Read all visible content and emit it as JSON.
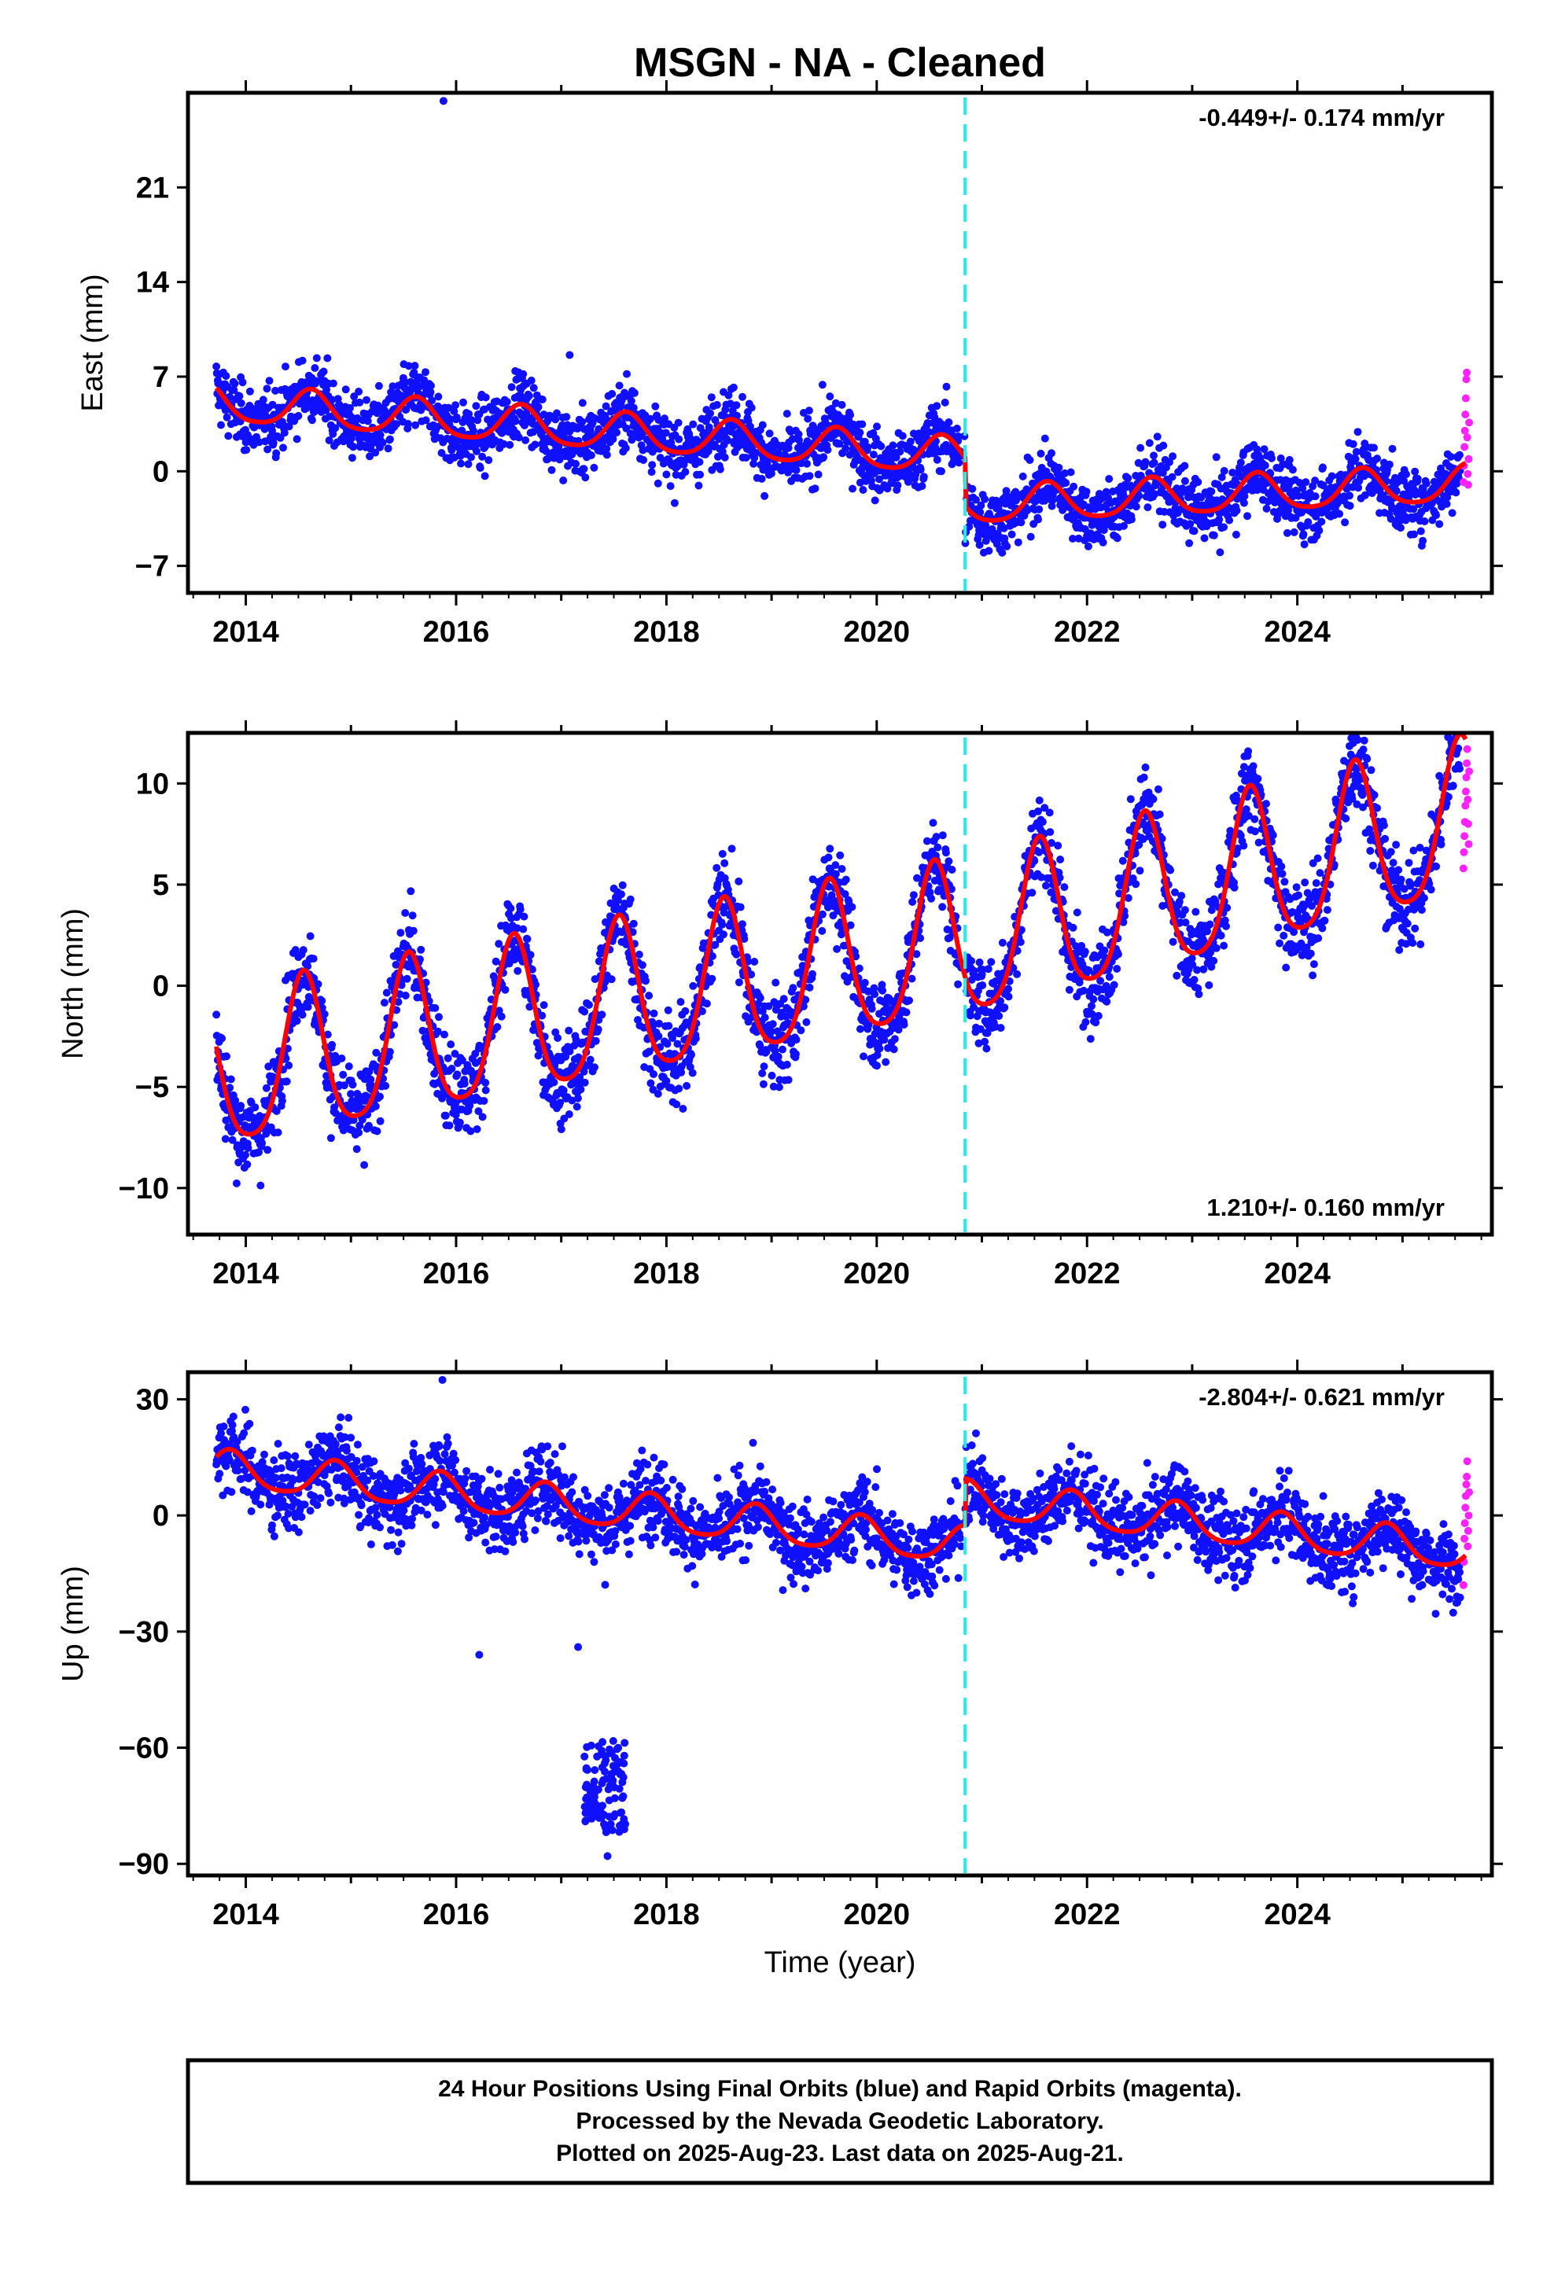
{
  "title": "MSGN  - NA - Cleaned",
  "xlabel": "Time (year)",
  "caption": [
    "24 Hour Positions Using Final Orbits (blue) and Rapid Orbits (magenta).",
    "Processed by the Nevada Geodetic Laboratory.",
    "Plotted on 2025-Aug-23. Last data on 2025-Aug-21."
  ],
  "colors": {
    "final": "#1010ff",
    "rapid": "#ff22ff",
    "model": "#ff0000",
    "event": "#22eeee"
  },
  "event_line_year": 2020.84,
  "chart_data": [
    {
      "type": "scatter",
      "component": "east",
      "ylabel": "East (mm)",
      "xlim": [
        2013.45,
        2025.85
      ],
      "ylim": [
        -9,
        28
      ],
      "yticks": [
        -7,
        0,
        7,
        14,
        21
      ],
      "xticks": [
        2014,
        2016,
        2018,
        2020,
        2022,
        2024
      ],
      "rate_label": "-0.449+/- 0.174 mm/yr",
      "rate_position": "top-right",
      "trend_knots": [
        [
          2013.7,
          5.0
        ],
        [
          2020.84,
          1.0
        ],
        [
          2020.84,
          -2.6
        ],
        [
          2025.6,
          -1.0
        ]
      ],
      "seasonal_amplitude": 1.6,
      "seasonal_peak": 0.62,
      "noise_sd": 1.2,
      "rapid_values": [
        -0.8,
        0.4,
        1.8,
        3.0,
        4.2,
        5.4,
        6.8,
        7.3,
        2.5,
        -0.2,
        -1.0,
        0.9,
        3.6
      ]
    },
    {
      "type": "scatter",
      "component": "north",
      "ylabel": "North (mm)",
      "xlim": [
        2013.45,
        2025.85
      ],
      "ylim": [
        -12.3,
        12.5
      ],
      "yticks": [
        -10,
        -5,
        0,
        5,
        10
      ],
      "xticks": [
        2014,
        2016,
        2018,
        2020,
        2022,
        2024
      ],
      "rate_label": "1.210+/- 0.160 mm/yr",
      "rate_position": "bottom-right",
      "trend_knots": [
        [
          2013.7,
          -4.5
        ],
        [
          2020.84,
          2.0
        ],
        [
          2020.84,
          2.0
        ],
        [
          2025.6,
          8.0
        ]
      ],
      "seasonal_amplitude": 4.5,
      "seasonal_peak": 0.55,
      "noise_sd": 1.1,
      "rapid_values": [
        5.8,
        6.6,
        7.4,
        8.1,
        8.9,
        9.6,
        10.3,
        11.0,
        11.7,
        9.2,
        8.0,
        7.0,
        10.6
      ]
    },
    {
      "type": "scatter",
      "component": "up",
      "ylabel": "Up (mm)",
      "xlim": [
        2013.45,
        2025.85
      ],
      "ylim": [
        -93,
        37
      ],
      "yticks": [
        -90,
        -60,
        -30,
        0,
        30
      ],
      "xticks": [
        2014,
        2016,
        2018,
        2020,
        2022,
        2024
      ],
      "rate_label": "-2.804+/- 0.621 mm/yr",
      "rate_position": "top-right",
      "trend_knots": [
        [
          2013.7,
          12.0
        ],
        [
          2020.84,
          -8.0
        ],
        [
          2020.84,
          4.0
        ],
        [
          2025.6,
          -9.5
        ]
      ],
      "seasonal_amplitude": 5.5,
      "seasonal_peak": 0.85,
      "noise_sd": 5.0,
      "rapid_values": [
        -18,
        -12,
        -6,
        -2,
        2,
        5,
        8,
        10,
        14,
        -8,
        -4,
        0,
        6
      ],
      "outliers": [
        [
          2015.87,
          35
        ],
        [
          2016.22,
          -36
        ],
        [
          2017.16,
          -34
        ],
        [
          2017.44,
          -88
        ]
      ],
      "outlier_cluster": {
        "x_range": [
          2017.22,
          2017.62
        ],
        "y_range": [
          -82,
          -58
        ]
      }
    }
  ]
}
